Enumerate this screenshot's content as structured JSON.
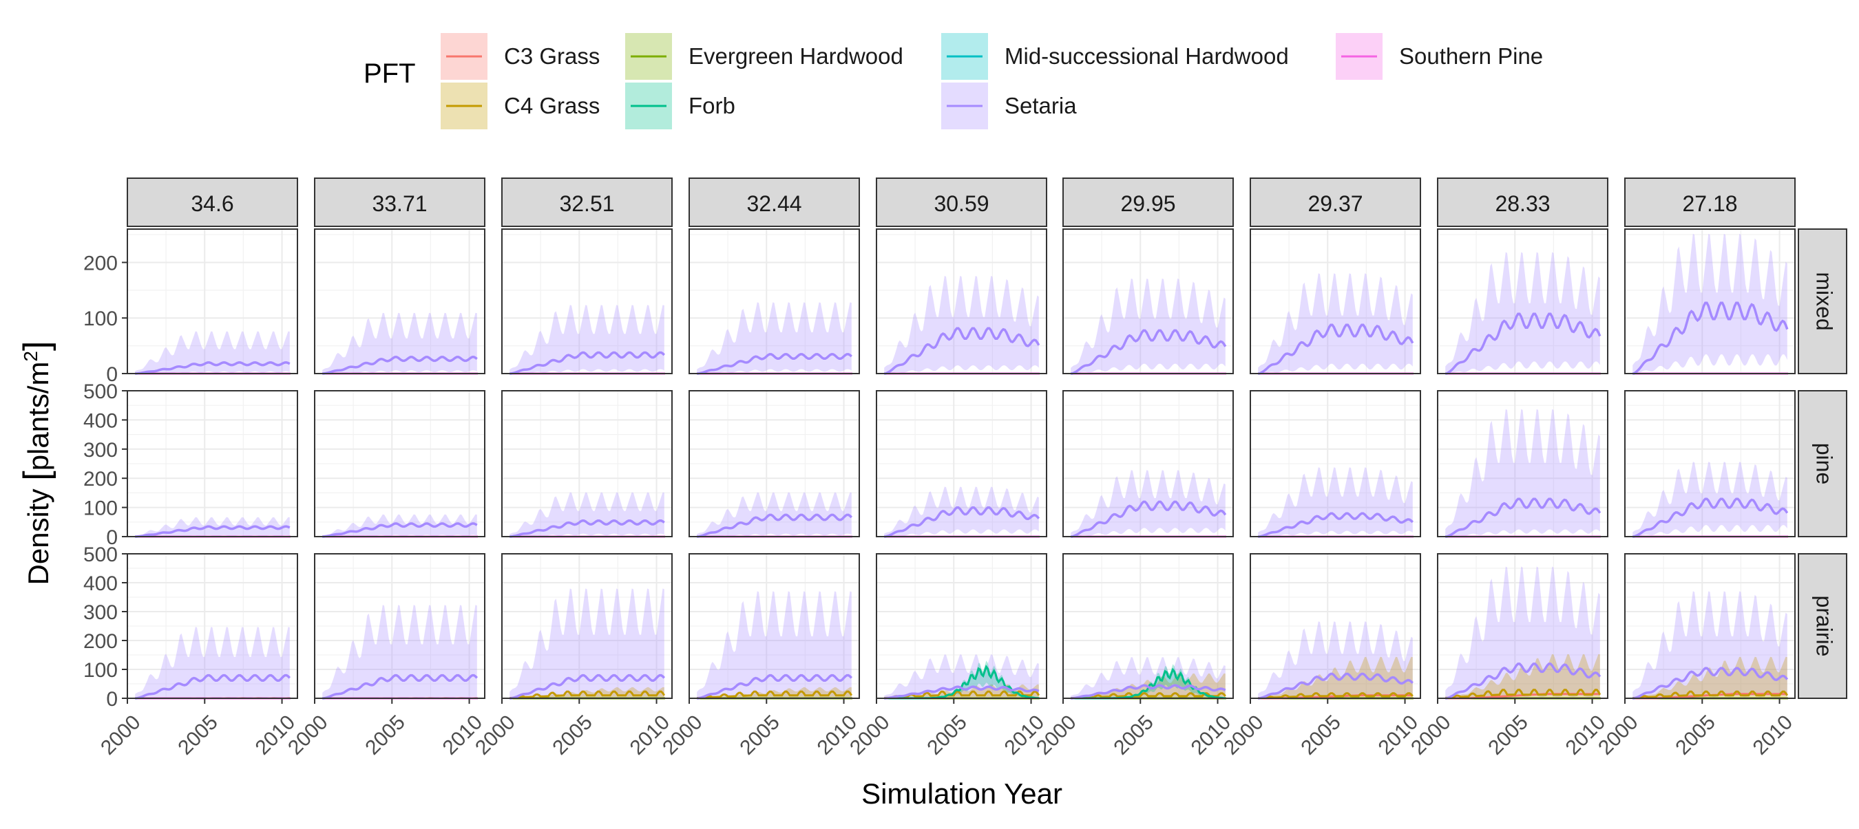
{
  "chart_data": {
    "type": "area",
    "xlabel": "Simulation Year",
    "ylabel": "Density [plants/m²]",
    "ylabel_main": "Density ",
    "ylabel_unit": "plants/m",
    "ylabel_sup": "2",
    "legend": {
      "title": "PFT",
      "position": "top",
      "entries": [
        {
          "name": "C3 Grass",
          "color": "#F8766D"
        },
        {
          "name": "Evergreen Hardwood",
          "color": "#7CAE00"
        },
        {
          "name": "Mid-successional Hardwood",
          "color": "#00BFC4"
        },
        {
          "name": "Southern Pine",
          "color": "#F564E3"
        },
        {
          "name": "C4 Grass",
          "color": "#C49A00"
        },
        {
          "name": "Forb",
          "color": "#00C08B"
        },
        {
          "name": "Setaria",
          "color": "#A58AFF"
        }
      ]
    },
    "facet_columns": [
      "34.6",
      "33.71",
      "32.51",
      "32.44",
      "30.59",
      "29.95",
      "29.37",
      "28.33",
      "27.18"
    ],
    "facet_rows": [
      {
        "name": "mixed",
        "ylim": [
          0,
          260
        ],
        "yticks": [
          "0",
          "100",
          "200"
        ],
        "ytick_values": [
          0,
          100,
          200
        ]
      },
      {
        "name": "pine",
        "ylim": [
          0,
          500
        ],
        "yticks": [
          "0",
          "100",
          "200",
          "300",
          "400",
          "500"
        ],
        "ytick_values": [
          0,
          100,
          200,
          300,
          400,
          500
        ]
      },
      {
        "name": "prairie",
        "ylim": [
          0,
          500
        ],
        "yticks": [
          "0",
          "100",
          "200",
          "300",
          "400",
          "500"
        ],
        "ytick_values": [
          0,
          100,
          200,
          300,
          400,
          500
        ]
      }
    ],
    "x_range": [
      2000,
      2011
    ],
    "xticks": [
      "2000",
      "2005",
      "2010"
    ],
    "xtick_values": [
      2000,
      2005,
      2010
    ],
    "grid": true,
    "setaria_mean_plateau": [
      [
        20,
        30,
        38,
        35,
        82,
        78,
        88,
        108,
        128
      ],
      [
        35,
        45,
        55,
        75,
        100,
        120,
        80,
        130,
        130
      ],
      [
        80,
        80,
        80,
        80,
        40,
        45,
        85,
        120,
        105
      ]
    ],
    "setaria_upper_peak": [
      [
        80,
        115,
        130,
        135,
        185,
        180,
        190,
        230,
        265
      ],
      [
        70,
        80,
        160,
        160,
        180,
        240,
        250,
        460,
        270
      ],
      [
        260,
        340,
        400,
        390,
        160,
        150,
        280,
        480,
        390
      ]
    ],
    "setaria_lower_base": [
      [
        4,
        6,
        8,
        8,
        15,
        18,
        18,
        22,
        35
      ],
      [
        5,
        6,
        10,
        10,
        25,
        30,
        20,
        25,
        40
      ],
      [
        5,
        5,
        5,
        5,
        5,
        5,
        10,
        10,
        10
      ]
    ],
    "forb_peak": [
      [
        0,
        0,
        0,
        0,
        0,
        0,
        0,
        0,
        0
      ],
      [
        0,
        0,
        0,
        0,
        0,
        0,
        0,
        0,
        0
      ],
      [
        0,
        0,
        0,
        0,
        110,
        100,
        0,
        0,
        0
      ]
    ],
    "c4_level": [
      [
        0,
        0,
        0,
        0,
        0,
        0,
        0,
        0,
        0
      ],
      [
        0,
        0,
        0,
        0,
        0,
        0,
        0,
        0,
        0
      ],
      [
        0,
        0,
        20,
        20,
        20,
        15,
        15,
        25,
        20
      ]
    ],
    "c4_upper": [
      [
        0,
        0,
        0,
        0,
        0,
        0,
        0,
        0,
        0
      ],
      [
        0,
        0,
        0,
        0,
        0,
        0,
        0,
        0,
        0
      ],
      [
        5,
        5,
        40,
        40,
        50,
        90,
        150,
        160,
        150
      ]
    ],
    "c3_level": [
      [
        0,
        0,
        0,
        0,
        0,
        0,
        0,
        0,
        0
      ],
      [
        0,
        0,
        0,
        0,
        0,
        0,
        0,
        0,
        0
      ],
      [
        0,
        0,
        0,
        0,
        0,
        0,
        10,
        15,
        15
      ]
    ]
  }
}
